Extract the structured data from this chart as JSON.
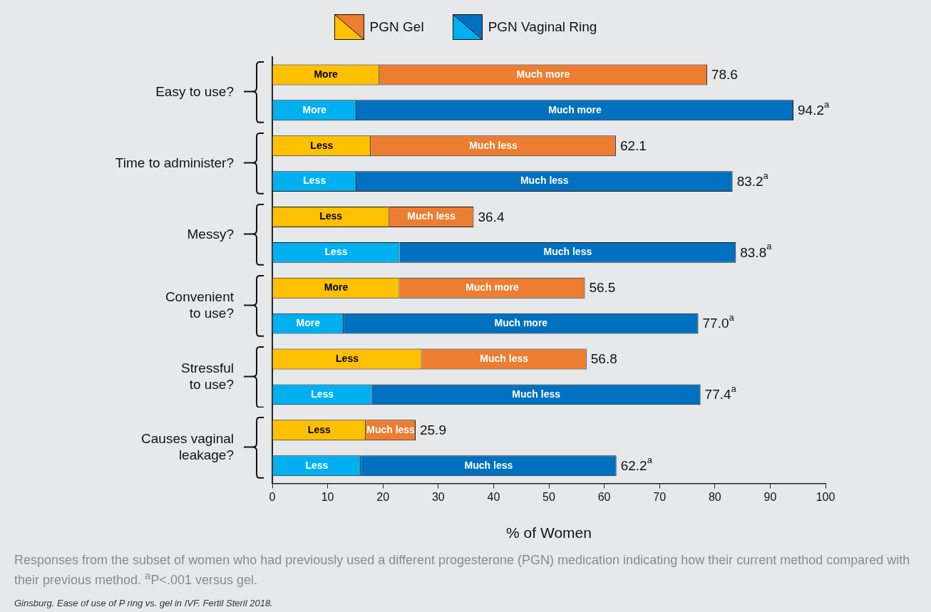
{
  "chart_data": {
    "type": "bar",
    "orientation": "horizontal",
    "stacked": true,
    "categories": [
      "Easy to use?",
      null,
      "Time to administer?",
      null,
      "Messy?",
      null,
      "Convenient\nto use?",
      null,
      "Stressful\nto use?",
      null,
      "Causes vaginal\nleakage?",
      null
    ],
    "series": [
      {
        "name": "PGN Gel",
        "color": "#ffc000",
        "values": [
          19.3,
          null,
          17.8,
          null,
          21.1,
          null,
          23.0,
          null,
          27.0,
          null,
          16.9,
          null
        ],
        "value_labels": [
          "More",
          null,
          "Less",
          null,
          "Less",
          null,
          "More",
          null,
          "Less",
          null,
          "Less",
          null
        ]
      },
      {
        "color": "#ed7d31",
        "values": [
          59.3,
          null,
          44.3,
          null,
          15.3,
          null,
          33.5,
          null,
          29.8,
          null,
          9.0,
          null
        ],
        "value_labels": [
          "Much more",
          null,
          "Much less",
          null,
          "Much less",
          null,
          "Much more",
          null,
          "Much less",
          null,
          "Much less",
          null
        ]
      },
      {
        "name": "PGN Vaginal Ring",
        "color": "#00b0f0",
        "values": [
          null,
          15.2,
          null,
          15.2,
          null,
          23.0,
          null,
          12.9,
          null,
          18.0,
          null,
          16.0
        ],
        "value_labels": [
          null,
          "More",
          null,
          "Less",
          null,
          "Less",
          null,
          "More",
          null,
          "Less",
          null,
          "Less"
        ]
      },
      {
        "color": "#0070c0",
        "values": [
          null,
          79.0,
          null,
          68.0,
          null,
          60.8,
          null,
          64.1,
          null,
          59.4,
          null,
          46.2
        ],
        "value_labels": [
          null,
          "Much more",
          null,
          "Much less",
          null,
          "Much less",
          null,
          "Much more",
          null,
          "Much less",
          null,
          "Much less"
        ]
      }
    ],
    "totals": [
      "78.6",
      "94.2$^{a}$",
      "62.1",
      "83.2$^{a}$",
      "36.4",
      "83.8$^{a}$",
      "56.5",
      "77.0$^{a}$",
      "56.8",
      "77.4$^{a}$",
      "25.9",
      "62.2$^{a}$"
    ],
    "xlim": [
      0,
      100
    ],
    "xticks": [
      0,
      10,
      20,
      30,
      40,
      50,
      60,
      70,
      80,
      90,
      100
    ],
    "xlabel": "% of Women",
    "legend": "top",
    "grid": false,
    "annotations": [
      "Responses from the subset of women who had previously used a different progesterone (PGN) medication indicating how their current method compared with their previous method. $^{a}$P<.001 versus gel.",
      "Ginsburg. Ease of use of P ring vs. gel in IVF. Fertil Steril 2018."
    ]
  }
}
